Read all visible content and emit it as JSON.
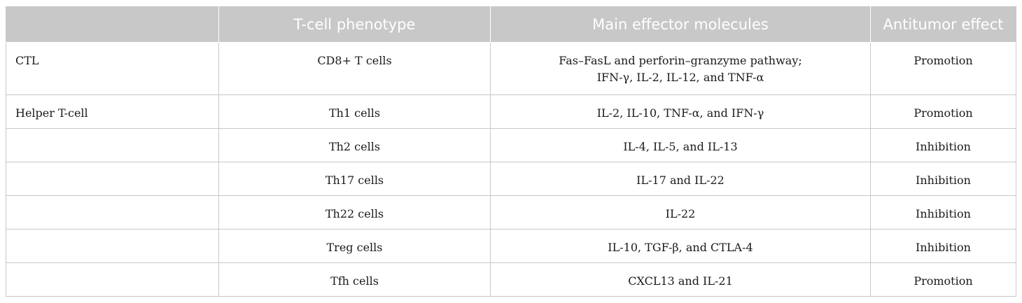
{
  "table": {
    "headers": [
      "",
      "T-cell phenotype",
      "Main effector molecules",
      "Antitumor effect"
    ],
    "rows": [
      {
        "category": "CTL",
        "phenotype": "CD8+ T cells",
        "molecules": [
          "Fas–FasL and perforin–granzyme pathway;",
          "IFN-γ, IL-2, IL-12, and TNF-α"
        ],
        "effect": "Promotion"
      },
      {
        "category": "Helper T-cell",
        "phenotype": "Th1 cells",
        "molecules": [
          "IL-2, IL-10, TNF-α, and IFN-γ"
        ],
        "effect": "Promotion"
      },
      {
        "category": "",
        "phenotype": "Th2 cells",
        "molecules": [
          "IL-4, IL-5, and IL-13"
        ],
        "effect": "Inhibition"
      },
      {
        "category": "",
        "phenotype": "Th17 cells",
        "molecules": [
          "IL-17 and IL-22"
        ],
        "effect": "Inhibition"
      },
      {
        "category": "",
        "phenotype": "Th22 cells",
        "molecules": [
          "IL-22"
        ],
        "effect": "Inhibition"
      },
      {
        "category": "",
        "phenotype": "Treg cells",
        "molecules": [
          "IL-10, TGF-β, and CTLA-4"
        ],
        "effect": "Inhibition"
      },
      {
        "category": "",
        "phenotype": "Tfh cells",
        "molecules": [
          "CXCL13 and IL-21"
        ],
        "effect": "Promotion"
      }
    ]
  }
}
